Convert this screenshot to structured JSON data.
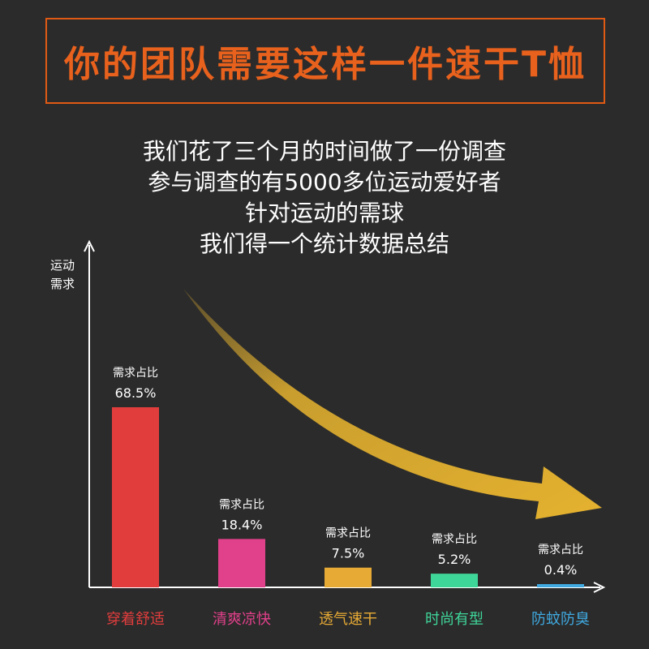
{
  "header": {
    "title": "你的团队需要这样一件速干T恤"
  },
  "intro": {
    "lines": [
      "我们花了三个月的时间做了一份调查",
      "参与调查的有5000多位运动爱好者",
      "针对运动的需球",
      "我们得一个统计数据总结"
    ]
  },
  "chart_data": {
    "type": "bar",
    "ylabel_lines": [
      "运动",
      "需求"
    ],
    "categories": [
      "穿着舒适",
      "清爽凉快",
      "透气速干",
      "时尚有型",
      "防蚊防臭"
    ],
    "values": [
      68.5,
      18.4,
      7.5,
      5.2,
      0.4
    ],
    "value_labels": [
      "68.5%",
      "18.4%",
      "7.5%",
      "5.2%",
      "0.4%"
    ],
    "bar_caption": "需求占比",
    "colors": [
      "#e23d3d",
      "#e1408a",
      "#e6aa35",
      "#3fd69a",
      "#3fa9e0"
    ],
    "arrow_color": "#e5b22f",
    "ylim": [
      0,
      80
    ],
    "grid": false
  }
}
